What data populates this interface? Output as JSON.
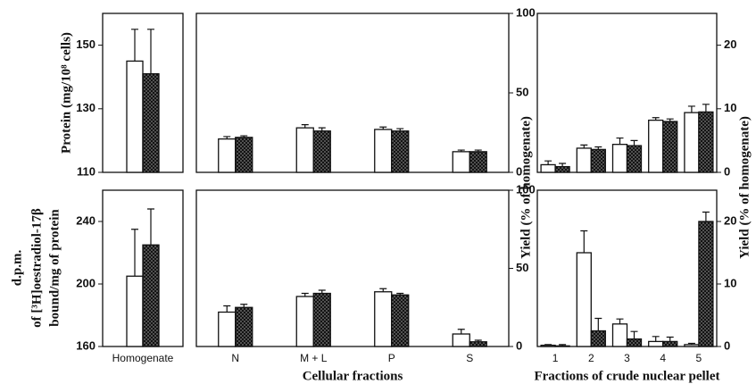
{
  "chart_data": [
    {
      "type": "bar",
      "ylabel": [
        "Protein (mg/10⁸ cells)"
      ],
      "categories": [
        null
      ],
      "ylim": [
        110,
        160
      ],
      "yticks": [
        110,
        130,
        150
      ],
      "series": [
        {
          "color": "#ffffff",
          "values": [
            145
          ],
          "errors": [
            10
          ]
        },
        {
          "color": "#333333",
          "pattern": "crosshatch",
          "values": [
            141
          ],
          "errors": [
            14
          ]
        }
      ]
    },
    {
      "type": "bar",
      "ylabel": [
        "d.p.m.",
        "of [³H]oestradiol-17β",
        "bound/mg of protein"
      ],
      "categories": [
        "Homogenate"
      ],
      "ylim": [
        160,
        260
      ],
      "yticks": [
        160,
        200,
        240
      ],
      "series": [
        {
          "color": "#ffffff",
          "values": [
            205
          ],
          "errors": [
            30
          ]
        },
        {
          "color": "#333333",
          "pattern": "crosshatch",
          "values": [
            225
          ],
          "errors": [
            23
          ]
        }
      ]
    },
    {
      "type": "bar",
      "ylabel": [
        "Yield (% of homogenate)"
      ],
      "categories": [
        null,
        null,
        null,
        null
      ],
      "ylim": [
        0,
        100
      ],
      "yticks": [
        0,
        50,
        100
      ],
      "series": [
        {
          "color": "#ffffff",
          "values": [
            21,
            28,
            27,
            13
          ],
          "errors": [
            1.5,
            2,
            1.5,
            1
          ]
        },
        {
          "color": "#333333",
          "pattern": "crosshatch",
          "values": [
            22,
            26,
            26,
            13
          ],
          "errors": [
            1,
            2,
            1.5,
            1
          ]
        }
      ]
    },
    {
      "type": "bar",
      "xlabel": "Cellular fractions",
      "categories": [
        "N",
        "M + L",
        "P",
        "S"
      ],
      "ylim": [
        0,
        100
      ],
      "yticks": [
        0,
        50,
        100
      ],
      "series": [
        {
          "color": "#ffffff",
          "values": [
            22,
            32,
            35,
            8
          ],
          "errors": [
            4,
            2,
            2,
            3
          ]
        },
        {
          "color": "#333333",
          "pattern": "crosshatch",
          "values": [
            25,
            34,
            33,
            3
          ],
          "errors": [
            2,
            2,
            1,
            1
          ]
        }
      ]
    },
    {
      "type": "bar",
      "ylabel": [
        "Yield (% of homogenate)"
      ],
      "categories": [
        null,
        null,
        null,
        null,
        null
      ],
      "ylim": [
        0,
        25
      ],
      "yticks": [
        0,
        10,
        20
      ],
      "series": [
        {
          "color": "#ffffff",
          "values": [
            1.2,
            3.8,
            4.4,
            8.2,
            9.4
          ],
          "errors": [
            0.6,
            0.5,
            1,
            0.4,
            1
          ]
        },
        {
          "color": "#333333",
          "pattern": "crosshatch",
          "values": [
            0.9,
            3.6,
            4.2,
            8.0,
            9.5
          ],
          "errors": [
            0.5,
            0.4,
            0.8,
            0.4,
            1.2
          ]
        }
      ]
    },
    {
      "type": "bar",
      "xlabel": "Fractions of crude nuclear pellet",
      "categories": [
        "1",
        "2",
        "3",
        "4",
        "5"
      ],
      "ylim": [
        0,
        25
      ],
      "yticks": [
        0,
        10,
        20
      ],
      "series": [
        {
          "color": "#ffffff",
          "values": [
            0.2,
            15,
            3.6,
            0.8,
            0.3
          ],
          "errors": [
            0.1,
            3.5,
            0.8,
            0.8,
            0.2
          ],
          "value_labels": null
        },
        {
          "color": "#333333",
          "pattern": "crosshatch",
          "values": [
            0.1,
            2.5,
            1.2,
            0.8,
            20
          ],
          "errors": [
            0.2,
            2,
            1.2,
            0.7,
            1.5
          ]
        }
      ]
    }
  ]
}
